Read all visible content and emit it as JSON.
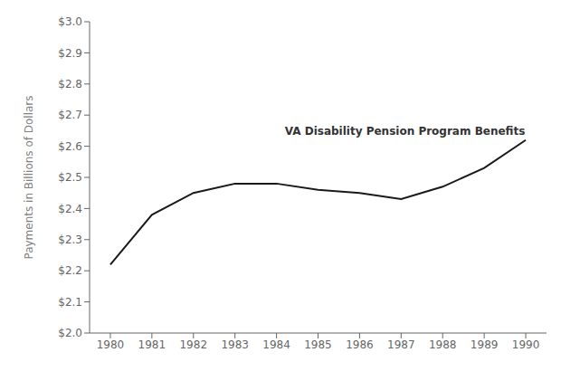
{
  "chart_data": {
    "type": "line",
    "x": [
      1980,
      1981,
      1982,
      1983,
      1984,
      1985,
      1986,
      1987,
      1988,
      1989,
      1990
    ],
    "values": [
      2.22,
      2.38,
      2.45,
      2.48,
      2.48,
      2.46,
      2.45,
      2.43,
      2.47,
      2.53,
      2.62
    ],
    "ylabel": "Payments in Billions of Dollars",
    "xlim": [
      1979.5,
      1990.5
    ],
    "ylim": [
      2.0,
      3.0
    ],
    "xticks": [
      1980,
      1981,
      1982,
      1983,
      1984,
      1985,
      1986,
      1987,
      1988,
      1989,
      1990
    ],
    "yticks": [
      {
        "value": 2.0,
        "label": "$2.0"
      },
      {
        "value": 2.1,
        "label": "$2.1"
      },
      {
        "value": 2.2,
        "label": "$2.2"
      },
      {
        "value": 2.3,
        "label": "$2.3"
      },
      {
        "value": 2.4,
        "label": "$2.4"
      },
      {
        "value": 2.5,
        "label": "$2.5"
      },
      {
        "value": 2.6,
        "label": "$2.6"
      },
      {
        "value": 2.7,
        "label": "$2.7"
      },
      {
        "value": 2.8,
        "label": "$2.8"
      },
      {
        "value": 2.9,
        "label": "$2.9"
      },
      {
        "value": 3.0,
        "label": "$3.0"
      }
    ],
    "color": "#1a1a1a",
    "annotations": [
      {
        "text": "VA Disability Pension Program Benefits",
        "x": 1984.2,
        "y": 2.648
      }
    ],
    "grid": false
  }
}
